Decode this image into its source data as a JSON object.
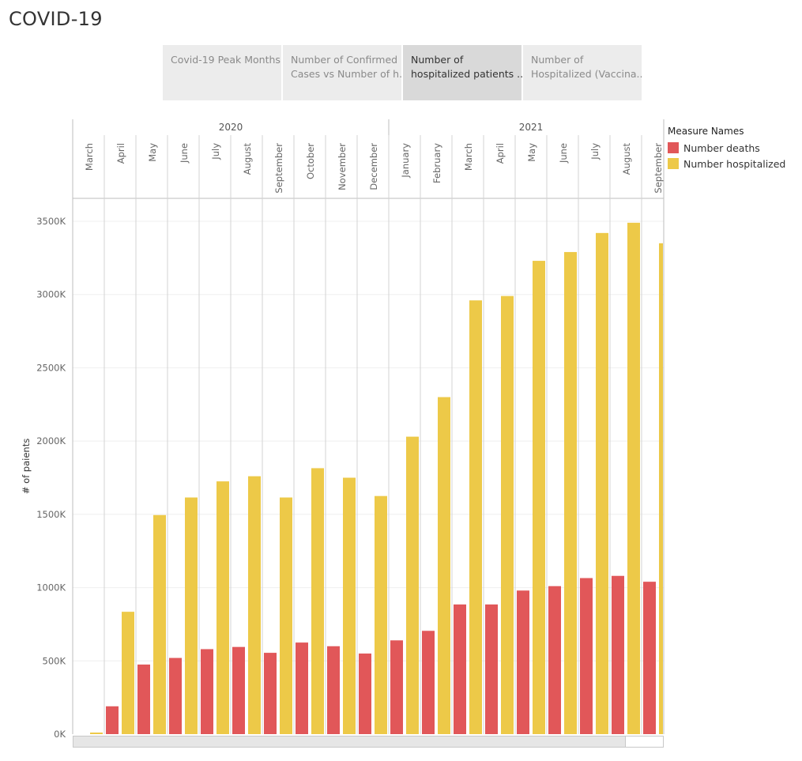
{
  "page": {
    "title": "COVID-19"
  },
  "tabs": [
    {
      "line1": "Covid-19 Peak Months",
      "line2": "",
      "active": false
    },
    {
      "line1": "Number of Confirmed",
      "line2": "Cases vs Number of h..",
      "active": false
    },
    {
      "line1": "Number of",
      "line2": "hospitalized patients ..",
      "active": true
    },
    {
      "line1": "Number of",
      "line2": "Hospitalized (Vaccina..",
      "active": false
    }
  ],
  "legend": {
    "title": "Measure Names",
    "items": [
      {
        "label": "Number deaths",
        "color": "#e15759"
      },
      {
        "label": "Number hospitalized",
        "color": "#edc948"
      }
    ]
  },
  "chart_data": {
    "type": "bar",
    "ylabel": "# of paients",
    "ylim": [
      0,
      3650000
    ],
    "yticks": [
      0,
      500000,
      1000000,
      1500000,
      2000000,
      2500000,
      3000000,
      3500000
    ],
    "ytick_labels": [
      "0K",
      "500K",
      "1000K",
      "1500K",
      "2000K",
      "2500K",
      "3000K",
      "3500K"
    ],
    "years": [
      {
        "label": "2020",
        "start": 0,
        "end": 10
      },
      {
        "label": "2021",
        "start": 10,
        "end": 19
      }
    ],
    "categories": [
      "March",
      "April",
      "May",
      "June",
      "July",
      "August",
      "September",
      "October",
      "November",
      "December",
      "January",
      "February",
      "March",
      "April",
      "May",
      "June",
      "July",
      "August",
      "September"
    ],
    "series": [
      {
        "name": "Number deaths",
        "color": "#e15759",
        "values": [
          0,
          190000,
          475000,
          520000,
          580000,
          595000,
          555000,
          625000,
          600000,
          550000,
          640000,
          705000,
          885000,
          885000,
          980000,
          1010000,
          1065000,
          1080000,
          1040000
        ]
      },
      {
        "name": "Number hospitalized",
        "color": "#edc948",
        "values": [
          10000,
          835000,
          1495000,
          1615000,
          1725000,
          1760000,
          1615000,
          1815000,
          1750000,
          1625000,
          2030000,
          2300000,
          2960000,
          2990000,
          3230000,
          3290000,
          3420000,
          3490000,
          3350000
        ]
      }
    ]
  }
}
